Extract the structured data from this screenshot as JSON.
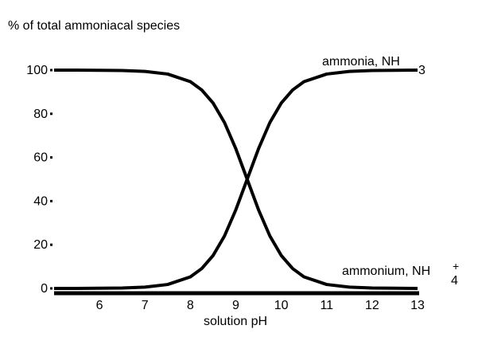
{
  "chart_data": {
    "type": "line",
    "title": "% of total ammoniacal species",
    "xlabel": "solution pH",
    "ylabel": "% of total ammoniacal species",
    "xlim": [
      5,
      13
    ],
    "ylim": [
      0,
      100
    ],
    "x_ticks": [
      6,
      7,
      8,
      9,
      10,
      11,
      12,
      13
    ],
    "y_ticks": [
      0,
      20,
      40,
      60,
      80,
      100
    ],
    "pKa": 9.25,
    "series": [
      {
        "name": "ammonia, NH3",
        "label_text": "ammonia, NH",
        "label_sub": "3",
        "x": [
          5,
          5.5,
          6,
          6.5,
          7,
          7.5,
          8,
          8.25,
          8.5,
          8.75,
          9,
          9.25,
          9.5,
          9.75,
          10,
          10.25,
          10.5,
          11,
          11.5,
          12,
          12.5,
          13
        ],
        "values": [
          0,
          0,
          0.1,
          0.2,
          0.6,
          1.8,
          5.3,
          9.1,
          15.1,
          24.0,
          36.0,
          50.0,
          64.0,
          76.0,
          84.9,
          90.9,
          94.7,
          98.2,
          99.4,
          99.8,
          99.9,
          100
        ]
      },
      {
        "name": "ammonium, NH4+",
        "label_text": "ammonium, NH",
        "label_sub": "4",
        "label_sup": "+",
        "x": [
          5,
          5.5,
          6,
          6.5,
          7,
          7.5,
          8,
          8.25,
          8.5,
          8.75,
          9,
          9.25,
          9.5,
          9.75,
          10,
          10.25,
          10.5,
          11,
          11.5,
          12,
          12.5,
          13
        ],
        "values": [
          100,
          100,
          99.9,
          99.8,
          99.4,
          98.2,
          94.7,
          90.9,
          84.9,
          76.0,
          64.0,
          50.0,
          36.0,
          24.0,
          15.1,
          9.1,
          5.3,
          1.8,
          0.6,
          0.2,
          0.1,
          0
        ]
      }
    ]
  }
}
